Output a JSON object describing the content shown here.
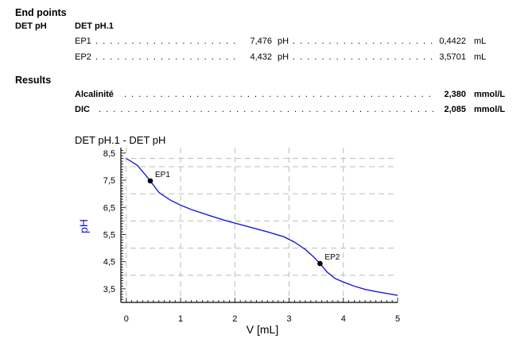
{
  "end_points": {
    "section_title": "End points",
    "method": "DET pH",
    "command": "DET pH.1",
    "rows": [
      {
        "name": "EP1",
        "ph_value": "7,476",
        "ph_unit": "pH",
        "volume": "0,4422",
        "volume_unit": "mL"
      },
      {
        "name": "EP2",
        "ph_value": "4,432",
        "ph_unit": "pH",
        "volume": "3,5701",
        "volume_unit": "mL"
      }
    ]
  },
  "results": {
    "section_title": "Results",
    "rows": [
      {
        "name": "Alcalinité",
        "value": "2,380",
        "unit": "mmol/L"
      },
      {
        "name": "DIC",
        "value": "2,085",
        "unit": "mmol/L"
      }
    ]
  },
  "chart_data": {
    "type": "line",
    "title": "DET pH.1 - DET pH",
    "xlabel": "V [mL]",
    "ylabel": "pH",
    "xlim": [
      -0.1,
      5.0
    ],
    "ylim": [
      3.0,
      8.7
    ],
    "x_ticks": [
      "0",
      "1",
      "2",
      "3",
      "4",
      "5"
    ],
    "y_ticks": [
      "3,5",
      "4,5",
      "5,5",
      "6,5",
      "7,5",
      "8,5"
    ],
    "grid": true,
    "line_color": "#1a1adc",
    "series": [
      {
        "x": [
          0.0,
          0.1,
          0.2,
          0.3,
          0.44,
          0.6,
          0.8,
          1.0,
          1.2,
          1.5,
          1.8,
          2.0,
          2.3,
          2.6,
          2.9,
          3.1,
          3.3,
          3.45,
          3.57,
          3.7,
          3.85,
          4.0,
          4.2,
          4.4,
          4.6,
          4.8,
          5.0
        ],
        "y": [
          8.3,
          8.18,
          8.05,
          7.82,
          7.48,
          7.05,
          6.78,
          6.58,
          6.42,
          6.22,
          6.03,
          5.92,
          5.76,
          5.6,
          5.42,
          5.22,
          4.95,
          4.68,
          4.43,
          4.12,
          3.88,
          3.75,
          3.6,
          3.48,
          3.4,
          3.33,
          3.26
        ]
      }
    ],
    "markers": [
      {
        "label": "EP1",
        "x": 0.4422,
        "y": 7.476
      },
      {
        "label": "EP2",
        "x": 3.5701,
        "y": 4.432
      }
    ]
  }
}
